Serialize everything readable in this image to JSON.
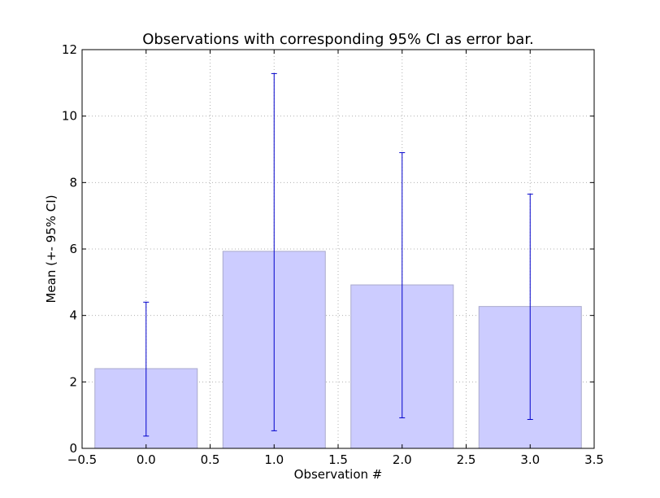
{
  "chart_data": {
    "type": "bar",
    "title": "Observations with corresponding 95% CI as error bar.",
    "xlabel": "Observation #",
    "ylabel": "Mean (+- 95% CI)",
    "x": [
      0,
      1,
      2,
      3
    ],
    "values": [
      2.4,
      5.93,
      4.92,
      4.27
    ],
    "error_low": [
      0.37,
      0.53,
      0.92,
      0.87
    ],
    "error_high": [
      4.4,
      11.28,
      8.9,
      7.65
    ],
    "bar_width": 0.8,
    "xlim": [
      -0.5,
      3.5
    ],
    "ylim": [
      0,
      12
    ],
    "xticks": [
      -0.5,
      0.0,
      0.5,
      1.0,
      1.5,
      2.0,
      2.5,
      3.0,
      3.5
    ],
    "xtick_labels": [
      "−0.5",
      "0.0",
      "0.5",
      "1.0",
      "1.5",
      "2.0",
      "2.5",
      "3.0",
      "3.5"
    ],
    "yticks": [
      0,
      2,
      4,
      6,
      8,
      10,
      12
    ],
    "ytick_labels": [
      "0",
      "2",
      "4",
      "6",
      "8",
      "10",
      "12"
    ],
    "grid": true,
    "legend": "none",
    "bar_color": "#ccccff",
    "bar_edge_color": "#aaaacc",
    "errorbar_color": "#0000cc"
  }
}
